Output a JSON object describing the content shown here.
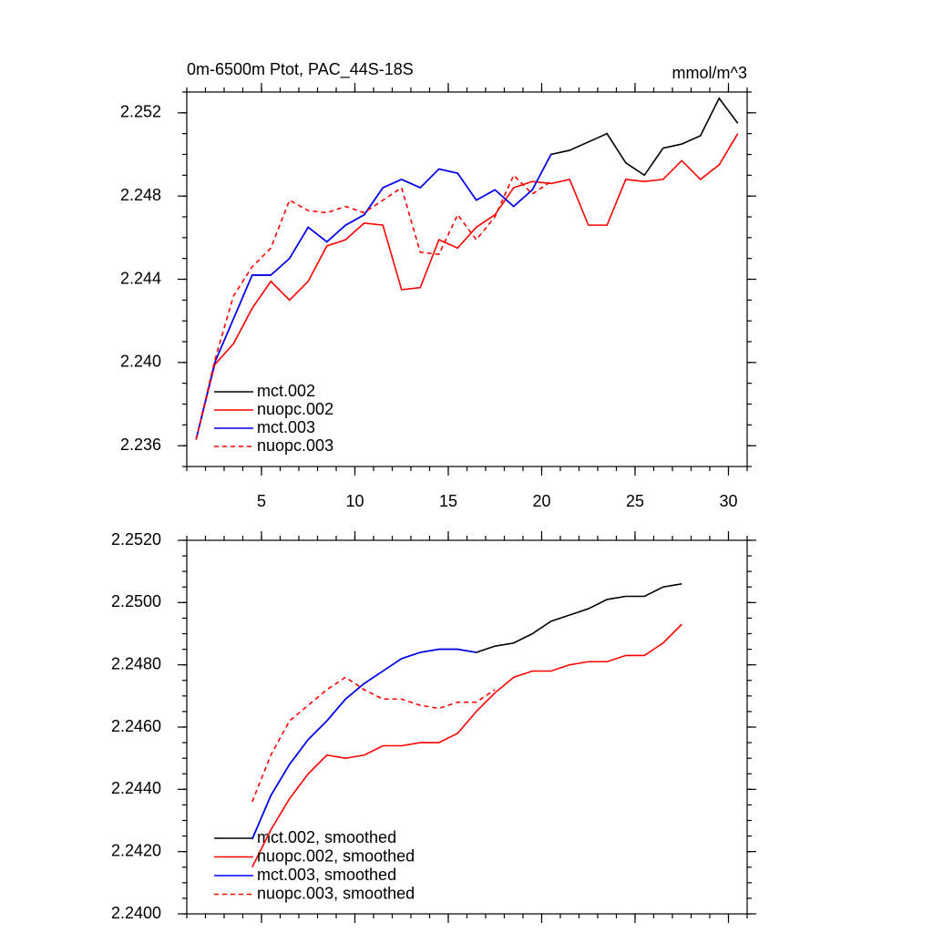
{
  "chart_data": [
    {
      "type": "line",
      "title": "0m-6500m Ptot, PAC_44S-18S",
      "units": "mmol/m^3",
      "x": [
        1.5,
        2.5,
        3.5,
        4.5,
        5.5,
        6.5,
        7.5,
        8.5,
        9.5,
        10.5,
        11.5,
        12.5,
        13.5,
        14.5,
        15.5,
        16.5,
        17.5,
        18.5,
        19.5,
        20.5,
        21.5,
        22.5,
        23.5,
        24.5,
        25.5,
        26.5,
        27.5,
        28.5,
        29.5,
        30.5
      ],
      "series": [
        {
          "name": "mct.002",
          "color": "#000000",
          "dash": false,
          "values": [
            2.2363,
            2.24,
            2.2421,
            2.2442,
            2.2442,
            2.245,
            2.2465,
            2.2458,
            2.2466,
            2.2471,
            2.2484,
            2.2488,
            2.2484,
            2.2493,
            2.2491,
            2.2478,
            2.2483,
            2.2475,
            2.2483,
            2.25,
            2.2502,
            2.2506,
            2.251,
            2.2496,
            2.249,
            2.2503,
            2.2505,
            2.2509,
            2.2527,
            2.2515
          ]
        },
        {
          "name": "nuopc.002",
          "color": "#ff0000",
          "dash": false,
          "values": [
            2.2363,
            2.2399,
            2.2409,
            2.2426,
            2.2439,
            2.243,
            2.2439,
            2.2456,
            2.2459,
            2.2467,
            2.2466,
            2.2435,
            2.2436,
            2.2459,
            2.2455,
            2.2465,
            2.2471,
            2.2484,
            2.2487,
            2.2486,
            2.2488,
            2.2466,
            2.2466,
            2.2488,
            2.2487,
            2.2488,
            2.2497,
            2.2488,
            2.2495,
            2.251
          ]
        },
        {
          "name": "mct.003",
          "color": "#0000ff",
          "dash": false,
          "values": [
            2.2363,
            2.24,
            2.2421,
            2.2442,
            2.2442,
            2.245,
            2.2465,
            2.2458,
            2.2466,
            2.2471,
            2.2484,
            2.2488,
            2.2484,
            2.2493,
            2.2491,
            2.2478,
            2.2483,
            2.2475,
            2.2483,
            2.25,
            null,
            null,
            null,
            null,
            null,
            null,
            null,
            null,
            null,
            null
          ]
        },
        {
          "name": "nuopc.003",
          "color": "#ff0000",
          "dash": true,
          "values": [
            2.2363,
            2.2401,
            2.2432,
            2.2446,
            2.2455,
            2.2478,
            2.2473,
            2.2472,
            2.2475,
            2.2472,
            2.2478,
            2.2484,
            2.2453,
            2.2452,
            2.2471,
            2.2459,
            2.247,
            2.249,
            2.2481,
            2.2487,
            null,
            null,
            null,
            null,
            null,
            null,
            null,
            null,
            null,
            null
          ]
        }
      ],
      "xlim": [
        1,
        31
      ],
      "ylim": [
        2.235,
        2.253
      ],
      "xticks": [
        5,
        10,
        15,
        20,
        25,
        30
      ],
      "xtick_labels": true,
      "yticks": [
        2.252,
        2.248,
        2.244,
        {
          "value": 2.24,
          "label": "2.240"
        },
        2.236
      ]
    },
    {
      "type": "line",
      "x": [
        4.5,
        5.5,
        6.5,
        7.5,
        8.5,
        9.5,
        10.5,
        11.5,
        12.5,
        13.5,
        14.5,
        15.5,
        16.5,
        17.5,
        18.5,
        19.5,
        20.5,
        21.5,
        22.5,
        23.5,
        24.5,
        25.5,
        26.5,
        27.5
      ],
      "series": [
        {
          "name": "mct.002, smoothed",
          "color": "#000000",
          "dash": false,
          "values": [
            2.2424,
            2.2438,
            2.2448,
            2.2456,
            2.2462,
            2.2469,
            2.2474,
            2.2478,
            2.2482,
            2.2484,
            2.2485,
            2.2485,
            2.2484,
            2.2486,
            2.2487,
            2.249,
            2.2494,
            2.2496,
            2.2498,
            2.2501,
            2.2502,
            2.2502,
            2.2505,
            2.2506
          ]
        },
        {
          "name": "nuopc.002, smoothed",
          "color": "#ff0000",
          "dash": false,
          "values": [
            2.2415,
            2.2427,
            2.2437,
            2.2445,
            2.2451,
            2.245,
            2.2451,
            2.2454,
            2.2454,
            2.2455,
            2.2455,
            2.2458,
            2.2465,
            2.2471,
            2.2476,
            2.2478,
            2.2478,
            2.248,
            2.2481,
            2.2481,
            2.2483,
            2.2483,
            2.2487,
            2.2493
          ]
        },
        {
          "name": "mct.003, smoothed",
          "color": "#0000ff",
          "dash": false,
          "values": [
            2.2424,
            2.2438,
            2.2448,
            2.2456,
            2.2462,
            2.2469,
            2.2474,
            2.2478,
            2.2482,
            2.2484,
            2.2485,
            2.2485,
            2.2484,
            null,
            null,
            null,
            null,
            null,
            null,
            null,
            null,
            null,
            null,
            null
          ]
        },
        {
          "name": "nuopc.003, smoothed",
          "color": "#ff0000",
          "dash": true,
          "values": [
            2.2436,
            2.2451,
            2.2462,
            2.2467,
            2.2472,
            2.2476,
            2.2472,
            2.2469,
            2.2469,
            2.2467,
            2.2466,
            2.2468,
            2.2468,
            2.2472,
            null,
            null,
            null,
            null,
            null,
            null,
            null,
            null,
            null,
            null
          ]
        }
      ],
      "xlim": [
        1,
        31
      ],
      "ylim": [
        2.24,
        2.252
      ],
      "xticks": [
        5,
        10,
        15,
        20,
        25,
        30
      ],
      "xtick_labels": false,
      "yticks": [
        {
          "value": 2.252,
          "label": "2.2520"
        },
        {
          "value": 2.25,
          "label": "2.2500"
        },
        {
          "value": 2.248,
          "label": "2.2480"
        },
        {
          "value": 2.246,
          "label": "2.2460"
        },
        {
          "value": 2.244,
          "label": "2.2440"
        },
        {
          "value": 2.242,
          "label": "2.2420"
        },
        {
          "value": 2.24,
          "label": "2.2400"
        }
      ]
    }
  ]
}
